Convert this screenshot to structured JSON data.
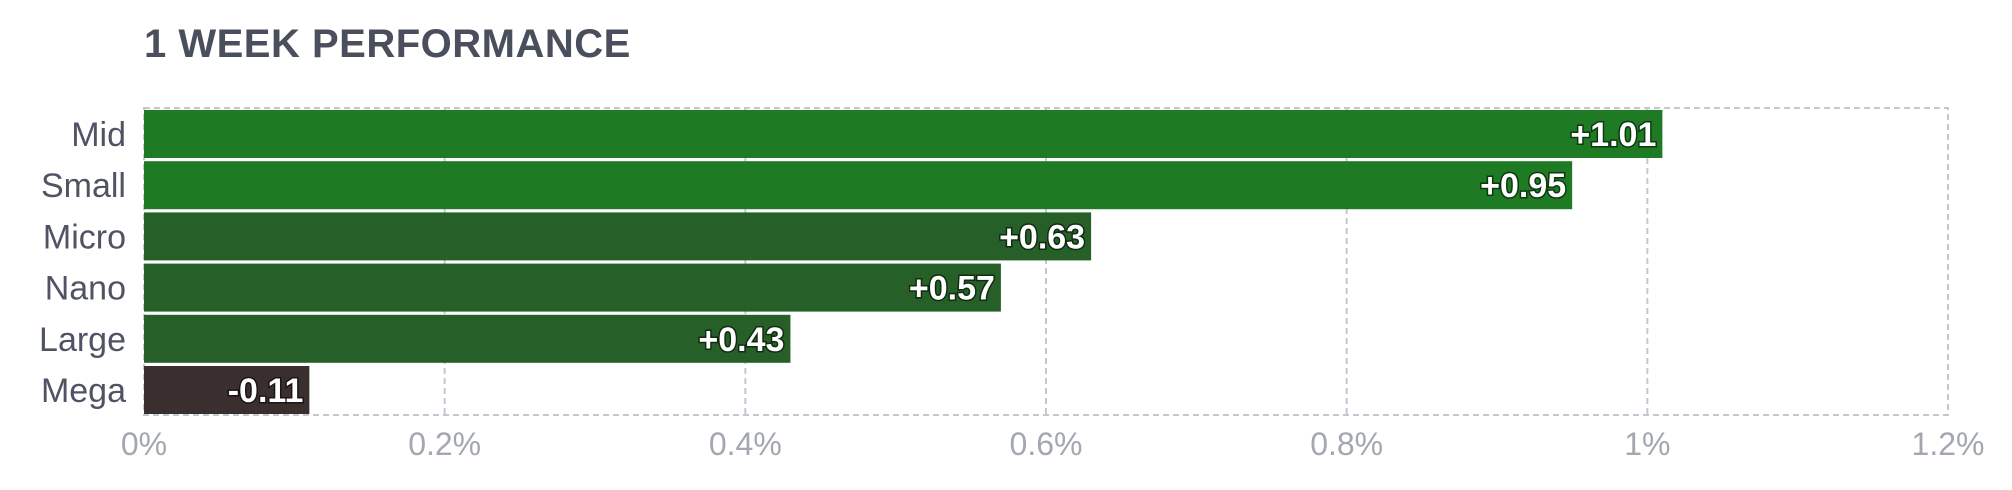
{
  "chart_data": {
    "type": "bar",
    "orientation": "horizontal",
    "title": "1 WEEK PERFORMANCE",
    "xlabel": "",
    "ylabel": "",
    "categories": [
      "Mid",
      "Small",
      "Micro",
      "Nano",
      "Large",
      "Mega"
    ],
    "values": [
      1.01,
      0.95,
      0.63,
      0.57,
      0.43,
      -0.11
    ],
    "value_labels": [
      "+1.01",
      "+0.95",
      "+0.63",
      "+0.57",
      "+0.43",
      "-0.11"
    ],
    "xlim": [
      0,
      1.2
    ],
    "x_ticks": [
      0,
      0.2,
      0.4,
      0.6,
      0.8,
      1.0,
      1.2
    ],
    "x_tick_labels": [
      "0%",
      "0.2%",
      "0.4%",
      "0.6%",
      "0.8%",
      "1%",
      "1.2%"
    ],
    "grid": true,
    "negative_values_drawn_by_magnitude": true,
    "colors": {
      "Mid": "#1e7a23",
      "Small": "#1e7a23",
      "Micro": "#265f28",
      "Nano": "#265f28",
      "Large": "#265f28",
      "Mega": "#3a2e2e"
    },
    "grid_color": "#c4c7cf",
    "title_color": "#4a4f5e"
  }
}
